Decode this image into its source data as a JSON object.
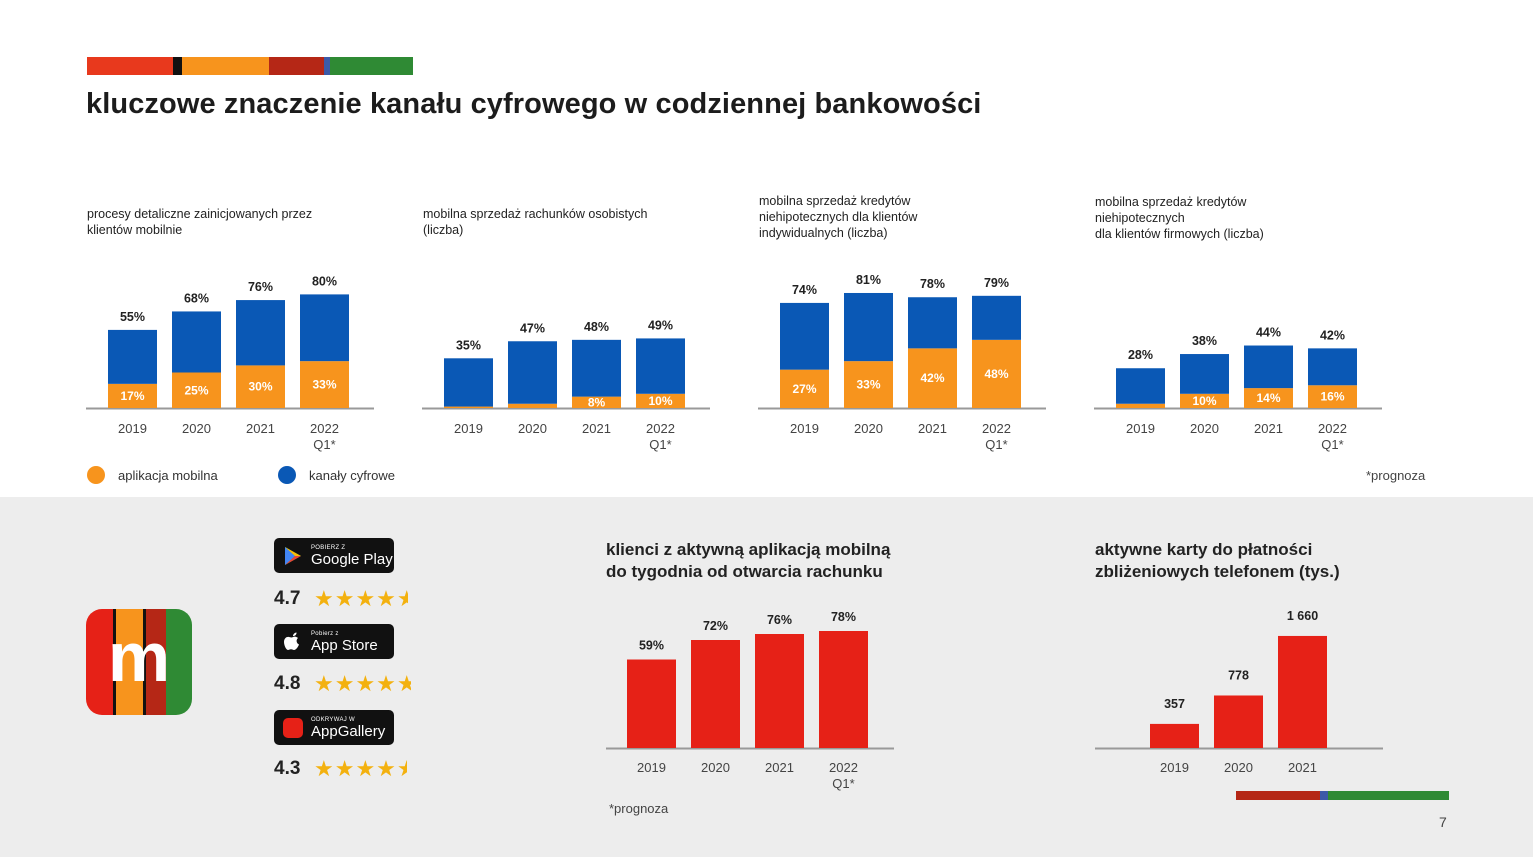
{
  "page": {
    "title": "kluczowe znaczenie kanału cyfrowego w codziennej bankowości",
    "page_number": "7",
    "footnote_forecast": "*prognoza"
  },
  "colors": {
    "mobile_app": "#f7941d",
    "digital_channels": "#0a58b5",
    "bottom_bars": "#e62117",
    "brand_red": "#e62117",
    "brand_orange": "#f7941d",
    "brand_darkred": "#b52716",
    "brand_green": "#2f8a34",
    "brand_black": "#111111",
    "brand_blue": "#3c5aa8"
  },
  "legend": {
    "mobile_app_label": "aplikacja mobilna",
    "digital_label": "kanały cyfrowe"
  },
  "apps": {
    "google_play": {
      "small": "POBIERZ Z",
      "big": "Google Play",
      "icon": "google-play-icon",
      "rating": "4.7"
    },
    "app_store": {
      "small": "Pobierz z",
      "big": "App Store",
      "icon": "apple-icon",
      "rating": "4.8"
    },
    "app_gallery": {
      "small": "ODKRYWAJ W",
      "big": "AppGallery",
      "icon": "huawei-icon",
      "rating": "4.3"
    },
    "logo_letter": "m"
  },
  "chart_data": [
    {
      "type": "bar",
      "stacked": true,
      "title": "procesy detaliczne zainicjowanych przez\nklientów mobilnie",
      "categories": [
        "2019",
        "2020",
        "2021",
        "2022\nQ1*"
      ],
      "series": [
        {
          "name": "aplikacja mobilna",
          "values": [
            17,
            25,
            30,
            33
          ],
          "labels": [
            "17%",
            "25%",
            "30%",
            "33%"
          ]
        },
        {
          "name": "kanały cyfrowe",
          "values": [
            38,
            43,
            46,
            47
          ]
        }
      ],
      "total_labels": [
        "55%",
        "68%",
        "76%",
        "80%"
      ],
      "totals": [
        55,
        68,
        76,
        80
      ]
    },
    {
      "type": "bar",
      "stacked": true,
      "title": "mobilna sprzedaż rachunków osobistych\n(liczba)",
      "categories": [
        "2019",
        "2020",
        "2021",
        "2022\nQ1*"
      ],
      "series": [
        {
          "name": "aplikacja mobilna",
          "values": [
            1,
            3,
            8,
            10
          ],
          "labels": [
            "",
            "",
            "8%",
            "10%"
          ]
        },
        {
          "name": "kanały cyfrowe",
          "values": [
            34,
            44,
            40,
            39
          ]
        }
      ],
      "total_labels": [
        "35%",
        "47%",
        "48%",
        "49%"
      ],
      "totals": [
        35,
        47,
        48,
        49
      ]
    },
    {
      "type": "bar",
      "stacked": true,
      "title": "mobilna sprzedaż kredytów\nniehipotecznych dla klientów\nindywidualnych (liczba)",
      "categories": [
        "2019",
        "2020",
        "2021",
        "2022\nQ1*"
      ],
      "series": [
        {
          "name": "aplikacja mobilna",
          "values": [
            27,
            33,
            42,
            48
          ],
          "labels": [
            "27%",
            "33%",
            "42%",
            "48%"
          ]
        },
        {
          "name": "kanały cyfrowe",
          "values": [
            47,
            48,
            36,
            31
          ]
        }
      ],
      "total_labels": [
        "74%",
        "81%",
        "78%",
        "79%"
      ],
      "totals": [
        74,
        81,
        78,
        79
      ]
    },
    {
      "type": "bar",
      "stacked": true,
      "title": "mobilna sprzedaż kredytów\nniehipotecznych\ndla klientów firmowych (liczba)",
      "categories": [
        "2019",
        "2020",
        "2021",
        "2022\nQ1*"
      ],
      "series": [
        {
          "name": "aplikacja mobilna",
          "values": [
            3,
            10,
            14,
            16
          ],
          "labels": [
            "",
            "10%",
            "14%",
            "16%"
          ]
        },
        {
          "name": "kanały cyfrowe",
          "values": [
            25,
            28,
            30,
            26
          ]
        }
      ],
      "total_labels": [
        "28%",
        "38%",
        "44%",
        "42%"
      ],
      "totals": [
        28,
        38,
        44,
        42
      ]
    },
    {
      "type": "bar",
      "title": "klienci z aktywną aplikacją mobilną\ndo tygodnia od otwarcia rachunku",
      "categories": [
        "2019",
        "2020",
        "2021",
        "2022\nQ1*"
      ],
      "values": [
        59,
        72,
        76,
        78
      ],
      "labels": [
        "59%",
        "72%",
        "76%",
        "78%"
      ]
    },
    {
      "type": "bar",
      "title": "aktywne karty do płatności\nzbliżeniowych telefonem (tys.)",
      "categories": [
        "2019",
        "2020",
        "2021"
      ],
      "values": [
        357,
        778,
        1660
      ],
      "labels": [
        "357",
        "778",
        "1 660"
      ]
    }
  ]
}
